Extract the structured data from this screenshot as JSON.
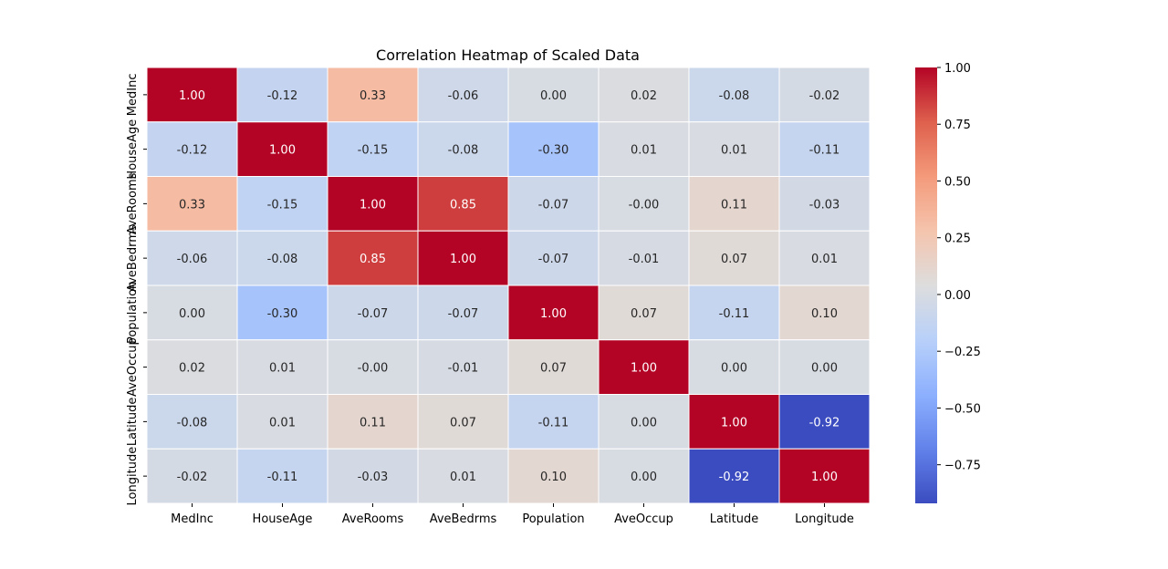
{
  "chart_data": {
    "type": "heatmap",
    "title": "Correlation Heatmap of Scaled Data",
    "xlabel": "",
    "ylabel": "",
    "x_categories": [
      "MedInc",
      "HouseAge",
      "AveRooms",
      "AveBedrms",
      "Population",
      "AveOccup",
      "Latitude",
      "Longitude"
    ],
    "y_categories": [
      "MedInc",
      "HouseAge",
      "AveRooms",
      "AveBedrms",
      "Population",
      "AveOccup",
      "Latitude",
      "Longitude"
    ],
    "values": [
      [
        1.0,
        -0.12,
        0.33,
        -0.06,
        0.0,
        0.02,
        -0.08,
        -0.02
      ],
      [
        -0.12,
        1.0,
        -0.15,
        -0.08,
        -0.3,
        0.01,
        0.01,
        -0.11
      ],
      [
        0.33,
        -0.15,
        1.0,
        0.85,
        -0.07,
        -0.0,
        0.11,
        -0.03
      ],
      [
        -0.06,
        -0.08,
        0.85,
        1.0,
        -0.07,
        -0.01,
        0.07,
        0.01
      ],
      [
        0.0,
        -0.3,
        -0.07,
        -0.07,
        1.0,
        0.07,
        -0.11,
        0.1
      ],
      [
        0.02,
        0.01,
        -0.0,
        -0.01,
        0.07,
        1.0,
        0.0,
        0.0
      ],
      [
        -0.08,
        0.01,
        0.11,
        0.07,
        -0.11,
        0.0,
        1.0,
        -0.92
      ],
      [
        -0.02,
        -0.11,
        -0.03,
        0.01,
        0.1,
        0.0,
        -0.92,
        1.0
      ]
    ],
    "annotation_format": "2 decimals",
    "colormap": "coolwarm",
    "color_range": [
      -0.92,
      1.0
    ],
    "colorbar_ticks": [
      "1.00",
      "0.75",
      "0.50",
      "0.25",
      "0.00",
      "−0.25",
      "−0.50",
      "−0.75"
    ],
    "colorbar_tick_values": [
      1.0,
      0.75,
      0.5,
      0.25,
      0.0,
      -0.25,
      -0.5,
      -0.75
    ],
    "cell_border_color": "#ffffff",
    "grid": false
  }
}
